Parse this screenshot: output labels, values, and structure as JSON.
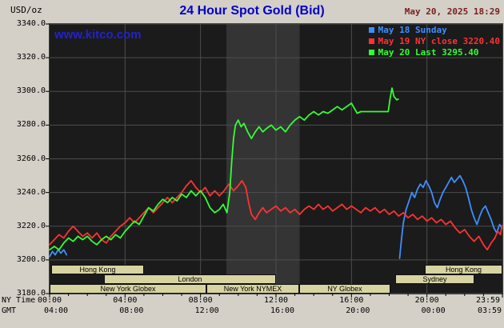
{
  "header": {
    "unit": "USD/oz",
    "title": "24 Hour Spot Gold (Bid)",
    "datetime": "May 20, 2025 18:29",
    "watermark": "www.kitco.com"
  },
  "axis": {
    "ny_time_label": "NY Time",
    "gmt_label": "GMT",
    "y_ticks": [
      {
        "value": 3340,
        "label": "3340.0"
      },
      {
        "value": 3320,
        "label": "3320.0"
      },
      {
        "value": 3300,
        "label": "3300.0"
      },
      {
        "value": 3280,
        "label": "3280.0"
      },
      {
        "value": 3260,
        "label": "3260.0"
      },
      {
        "value": 3240,
        "label": "3240.0"
      },
      {
        "value": 3220,
        "label": "3220.0"
      },
      {
        "value": 3200,
        "label": "3200.0"
      },
      {
        "value": 3180,
        "label": "3180.0"
      }
    ],
    "x_ticks": [
      {
        "hour": 0,
        "ny": "00:00",
        "gmt": "04:00"
      },
      {
        "hour": 4,
        "ny": "04:00",
        "gmt": "08:00"
      },
      {
        "hour": 8,
        "ny": "08:00",
        "gmt": "12:00"
      },
      {
        "hour": 12,
        "ny": "12:00",
        "gmt": "16:00"
      },
      {
        "hour": 16,
        "ny": "16:00",
        "gmt": "20:00"
      },
      {
        "hour": 20,
        "ny": "20:00",
        "gmt": "00:00"
      },
      {
        "hour": 24,
        "ny": "23:59",
        "gmt": "03:59"
      }
    ]
  },
  "legend": [
    {
      "label": "May 18 Sunday",
      "color": "#3d8fff"
    },
    {
      "label": "May 19 NY close 3220.40",
      "color": "#ff3232"
    },
    {
      "label": "May 20 Last 3295.40",
      "color": "#33ff33"
    }
  ],
  "sessions": [
    {
      "row": 0,
      "label": "Hong Kong",
      "start": 0.1,
      "end": 5.0
    },
    {
      "row": 0,
      "label": "Hong Kong",
      "start": 19.9,
      "end": 24.0
    },
    {
      "row": 1,
      "label": "London",
      "start": 2.9,
      "end": 12.0
    },
    {
      "row": 1,
      "label": "Sydney",
      "start": 18.3,
      "end": 22.5
    },
    {
      "row": 2,
      "label": "New York Globex",
      "start": 0.0,
      "end": 8.3
    },
    {
      "row": 2,
      "label": "New York NYMEX",
      "start": 8.3,
      "end": 13.2
    },
    {
      "row": 2,
      "label": "NY Globex",
      "start": 13.25,
      "end": 18.1
    }
  ],
  "chart_data": {
    "type": "line",
    "title": "24 Hour Spot Gold (Bid)",
    "ylabel": "USD/oz",
    "xlabel": "NY Time (hours 0-24)",
    "ylim": [
      3180,
      3340
    ],
    "xlim": [
      0,
      24
    ],
    "grid": true,
    "plot_bg": "#1b1b1b",
    "grid_color": "#4d4d4d",
    "nymex_band_hours": [
      9.37,
      13.25
    ],
    "nymex_band_color": "#343434",
    "series": [
      {
        "name": "May 18 Sunday",
        "color": "#3d8fff",
        "segments": [
          [
            [
              0.0,
              3202
            ],
            [
              0.15,
              3205
            ],
            [
              0.3,
              3203
            ],
            [
              0.45,
              3206
            ],
            [
              0.6,
              3204
            ],
            [
              0.75,
              3206
            ],
            [
              0.9,
              3203
            ]
          ],
          [
            [
              18.55,
              3201
            ],
            [
              18.65,
              3212
            ],
            [
              18.75,
              3222
            ],
            [
              18.9,
              3230
            ],
            [
              19.05,
              3235
            ],
            [
              19.2,
              3240
            ],
            [
              19.35,
              3237
            ],
            [
              19.5,
              3242
            ],
            [
              19.65,
              3245
            ],
            [
              19.8,
              3243
            ],
            [
              19.95,
              3247
            ],
            [
              20.1,
              3244
            ],
            [
              20.25,
              3240
            ],
            [
              20.4,
              3234
            ],
            [
              20.55,
              3231
            ],
            [
              20.7,
              3236
            ],
            [
              20.85,
              3240
            ],
            [
              21.0,
              3243
            ],
            [
              21.15,
              3246
            ],
            [
              21.3,
              3249
            ],
            [
              21.45,
              3246
            ],
            [
              21.6,
              3248
            ],
            [
              21.75,
              3250
            ],
            [
              21.9,
              3247
            ],
            [
              22.05,
              3243
            ],
            [
              22.2,
              3237
            ],
            [
              22.35,
              3230
            ],
            [
              22.5,
              3225
            ],
            [
              22.65,
              3221
            ],
            [
              22.8,
              3226
            ],
            [
              22.95,
              3230
            ],
            [
              23.1,
              3232
            ],
            [
              23.25,
              3228
            ],
            [
              23.4,
              3224
            ],
            [
              23.55,
              3219
            ],
            [
              23.7,
              3216
            ],
            [
              23.85,
              3221
            ],
            [
              23.98,
              3219
            ]
          ]
        ]
      },
      {
        "name": "May 19 NY close 3220.40",
        "color": "#ff3232",
        "close": 3220.4,
        "segments": [
          [
            [
              0.0,
              3209
            ],
            [
              0.25,
              3212
            ],
            [
              0.5,
              3215
            ],
            [
              0.75,
              3213
            ],
            [
              1.0,
              3217
            ],
            [
              1.25,
              3220
            ],
            [
              1.5,
              3217
            ],
            [
              1.75,
              3214
            ],
            [
              2.0,
              3216
            ],
            [
              2.25,
              3213
            ],
            [
              2.5,
              3216
            ],
            [
              2.75,
              3212
            ],
            [
              3.0,
              3210
            ],
            [
              3.25,
              3214
            ],
            [
              3.5,
              3217
            ],
            [
              3.75,
              3220
            ],
            [
              4.0,
              3222
            ],
            [
              4.25,
              3225
            ],
            [
              4.5,
              3222
            ],
            [
              4.75,
              3225
            ],
            [
              5.0,
              3228
            ],
            [
              5.25,
              3231
            ],
            [
              5.5,
              3228
            ],
            [
              5.75,
              3231
            ],
            [
              6.0,
              3234
            ],
            [
              6.25,
              3237
            ],
            [
              6.5,
              3234
            ],
            [
              6.75,
              3237
            ],
            [
              7.0,
              3240
            ],
            [
              7.25,
              3244
            ],
            [
              7.5,
              3247
            ],
            [
              7.75,
              3243
            ],
            [
              8.0,
              3240
            ],
            [
              8.25,
              3243
            ],
            [
              8.5,
              3238
            ],
            [
              8.75,
              3241
            ],
            [
              9.0,
              3238
            ],
            [
              9.25,
              3241
            ],
            [
              9.5,
              3245
            ],
            [
              9.75,
              3241
            ],
            [
              10.0,
              3244
            ],
            [
              10.2,
              3247
            ],
            [
              10.4,
              3243
            ],
            [
              10.55,
              3234
            ],
            [
              10.7,
              3227
            ],
            [
              10.9,
              3224
            ],
            [
              11.1,
              3228
            ],
            [
              11.3,
              3231
            ],
            [
              11.5,
              3228
            ],
            [
              11.75,
              3230
            ],
            [
              12.0,
              3232
            ],
            [
              12.25,
              3229
            ],
            [
              12.5,
              3231
            ],
            [
              12.75,
              3228
            ],
            [
              13.0,
              3230
            ],
            [
              13.25,
              3227
            ],
            [
              13.5,
              3230
            ],
            [
              13.75,
              3232
            ],
            [
              14.0,
              3230
            ],
            [
              14.25,
              3233
            ],
            [
              14.5,
              3230
            ],
            [
              14.75,
              3232
            ],
            [
              15.0,
              3229
            ],
            [
              15.25,
              3231
            ],
            [
              15.5,
              3233
            ],
            [
              15.75,
              3230
            ],
            [
              16.0,
              3232
            ],
            [
              16.25,
              3230
            ],
            [
              16.5,
              3228
            ],
            [
              16.75,
              3231
            ],
            [
              17.0,
              3229
            ],
            [
              17.25,
              3231
            ],
            [
              17.5,
              3228
            ],
            [
              17.75,
              3230
            ],
            [
              18.0,
              3227
            ],
            [
              18.25,
              3229
            ],
            [
              18.5,
              3226
            ],
            [
              18.75,
              3228
            ],
            [
              19.0,
              3225
            ],
            [
              19.25,
              3227
            ],
            [
              19.5,
              3224
            ],
            [
              19.75,
              3226
            ],
            [
              20.0,
              3223
            ],
            [
              20.25,
              3225
            ],
            [
              20.5,
              3222
            ],
            [
              20.75,
              3224
            ],
            [
              21.0,
              3221
            ],
            [
              21.25,
              3223
            ],
            [
              21.5,
              3219
            ],
            [
              21.75,
              3216
            ],
            [
              22.0,
              3218
            ],
            [
              22.25,
              3214
            ],
            [
              22.5,
              3211
            ],
            [
              22.75,
              3214
            ],
            [
              23.0,
              3209
            ],
            [
              23.2,
              3206
            ],
            [
              23.4,
              3210
            ],
            [
              23.6,
              3213
            ],
            [
              23.75,
              3217
            ],
            [
              23.9,
              3215
            ],
            [
              23.98,
              3220.4
            ]
          ]
        ]
      },
      {
        "name": "May 20 Last 3295.40",
        "color": "#33ff33",
        "last": 3295.4,
        "segments": [
          [
            [
              0.0,
              3206
            ],
            [
              0.25,
              3208
            ],
            [
              0.5,
              3206
            ],
            [
              0.75,
              3210
            ],
            [
              1.0,
              3213
            ],
            [
              1.25,
              3211
            ],
            [
              1.5,
              3214
            ],
            [
              1.75,
              3212
            ],
            [
              2.0,
              3214
            ],
            [
              2.25,
              3211
            ],
            [
              2.5,
              3209
            ],
            [
              2.75,
              3212
            ],
            [
              3.0,
              3214
            ],
            [
              3.25,
              3212
            ],
            [
              3.5,
              3215
            ],
            [
              3.75,
              3213
            ],
            [
              4.0,
              3217
            ],
            [
              4.25,
              3220
            ],
            [
              4.5,
              3223
            ],
            [
              4.75,
              3221
            ],
            [
              5.0,
              3226
            ],
            [
              5.25,
              3231
            ],
            [
              5.5,
              3229
            ],
            [
              5.75,
              3233
            ],
            [
              6.0,
              3236
            ],
            [
              6.25,
              3234
            ],
            [
              6.5,
              3237
            ],
            [
              6.75,
              3235
            ],
            [
              7.0,
              3239
            ],
            [
              7.25,
              3237
            ],
            [
              7.5,
              3241
            ],
            [
              7.75,
              3238
            ],
            [
              8.0,
              3241
            ],
            [
              8.25,
              3237
            ],
            [
              8.5,
              3231
            ],
            [
              8.75,
              3228
            ],
            [
              9.0,
              3230
            ],
            [
              9.2,
              3233
            ],
            [
              9.4,
              3228
            ],
            [
              9.55,
              3240
            ],
            [
              9.65,
              3258
            ],
            [
              9.75,
              3272
            ],
            [
              9.85,
              3280
            ],
            [
              10.0,
              3283
            ],
            [
              10.15,
              3279
            ],
            [
              10.3,
              3281
            ],
            [
              10.5,
              3276
            ],
            [
              10.7,
              3272
            ],
            [
              10.9,
              3276
            ],
            [
              11.1,
              3279
            ],
            [
              11.3,
              3276
            ],
            [
              11.5,
              3278
            ],
            [
              11.75,
              3280
            ],
            [
              12.0,
              3277
            ],
            [
              12.25,
              3279
            ],
            [
              12.5,
              3276
            ],
            [
              12.75,
              3280
            ],
            [
              13.0,
              3283
            ],
            [
              13.25,
              3285
            ],
            [
              13.5,
              3283
            ],
            [
              13.75,
              3286
            ],
            [
              14.0,
              3288
            ],
            [
              14.25,
              3286
            ],
            [
              14.5,
              3288
            ],
            [
              14.75,
              3287
            ],
            [
              15.0,
              3289
            ],
            [
              15.25,
              3291
            ],
            [
              15.5,
              3289
            ],
            [
              15.75,
              3291
            ],
            [
              16.0,
              3293
            ],
            [
              16.15,
              3290
            ],
            [
              16.3,
              3287
            ],
            [
              16.5,
              3288
            ],
            [
              17.0,
              3288
            ],
            [
              17.5,
              3288
            ],
            [
              17.95,
              3288
            ],
            [
              18.05,
              3296
            ],
            [
              18.15,
              3302
            ],
            [
              18.25,
              3297
            ],
            [
              18.4,
              3295
            ],
            [
              18.48,
              3295.4
            ]
          ]
        ]
      }
    ]
  }
}
